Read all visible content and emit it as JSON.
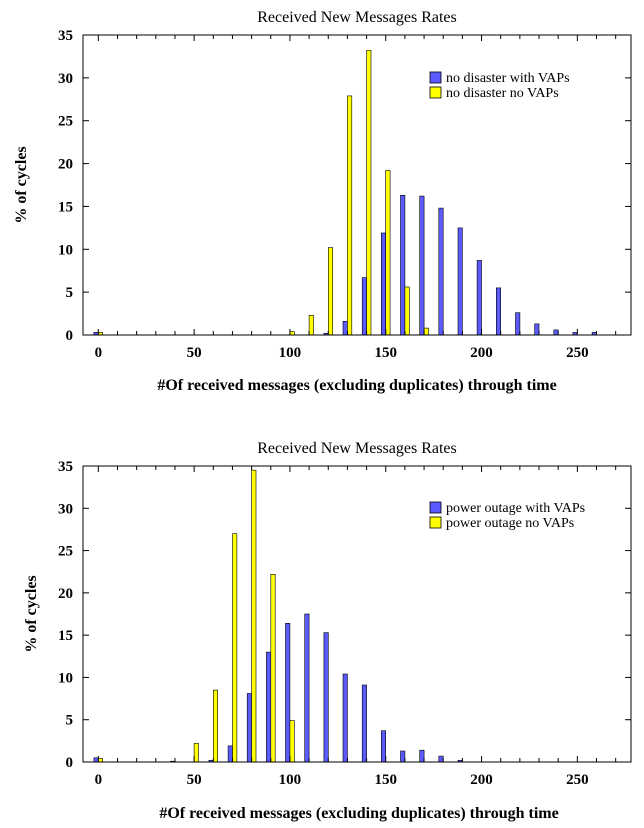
{
  "chart_data": [
    {
      "type": "bar",
      "title": "Received New Messages Rates",
      "xlabel": "#Of received messages (excluding duplicates) through time",
      "ylabel": "% of cycles",
      "xlim": [
        -8,
        278
      ],
      "ylim": [
        0,
        35
      ],
      "xticks": [
        0,
        50,
        100,
        150,
        200,
        250
      ],
      "yticks": [
        0,
        5,
        10,
        15,
        20,
        25,
        30,
        35
      ],
      "grid": false,
      "legend": "top-right",
      "series": [
        {
          "name": "no disaster with VAPs",
          "color": "#5a5aff",
          "x": [
            0,
            120,
            130,
            140,
            150,
            160,
            170,
            180,
            190,
            200,
            210,
            220,
            230,
            240,
            250,
            260
          ],
          "values": [
            0.3,
            0.2,
            1.6,
            6.7,
            11.9,
            16.3,
            16.2,
            14.8,
            12.5,
            8.7,
            5.5,
            2.6,
            1.3,
            0.6,
            0.3,
            0.3
          ]
        },
        {
          "name": "no disaster no VAPs",
          "color": "#ffff00",
          "x": [
            0,
            100,
            110,
            120,
            130,
            140,
            150,
            160,
            170
          ],
          "values": [
            0.3,
            0.4,
            2.3,
            10.2,
            27.9,
            33.2,
            19.2,
            5.6,
            0.8
          ]
        }
      ]
    },
    {
      "type": "bar",
      "title": "Received New Messages Rates",
      "xlabel": "#Of received messages (excluding duplicates) through time",
      "ylabel": "% of cycles",
      "xlim": [
        -8,
        278
      ],
      "ylim": [
        0,
        35
      ],
      "xticks": [
        0,
        50,
        100,
        150,
        200,
        250
      ],
      "yticks": [
        0,
        5,
        10,
        15,
        20,
        25,
        30,
        35
      ],
      "grid": false,
      "legend": "top-right",
      "series": [
        {
          "name": "power outage with VAPs",
          "color": "#5a5aff",
          "x": [
            0,
            40,
            60,
            70,
            80,
            90,
            100,
            110,
            120,
            130,
            140,
            150,
            160,
            170,
            180,
            190
          ],
          "values": [
            0.5,
            0.1,
            0.2,
            1.9,
            8.1,
            13.0,
            16.4,
            17.5,
            15.3,
            10.4,
            9.1,
            3.7,
            1.3,
            1.4,
            0.7,
            0.2
          ]
        },
        {
          "name": "power outage no VAPs",
          "color": "#ffff00",
          "x": [
            0,
            50,
            60,
            70,
            80,
            90,
            100
          ],
          "values": [
            0.4,
            2.2,
            8.5,
            27.0,
            34.5,
            22.2,
            4.9
          ]
        }
      ]
    }
  ]
}
